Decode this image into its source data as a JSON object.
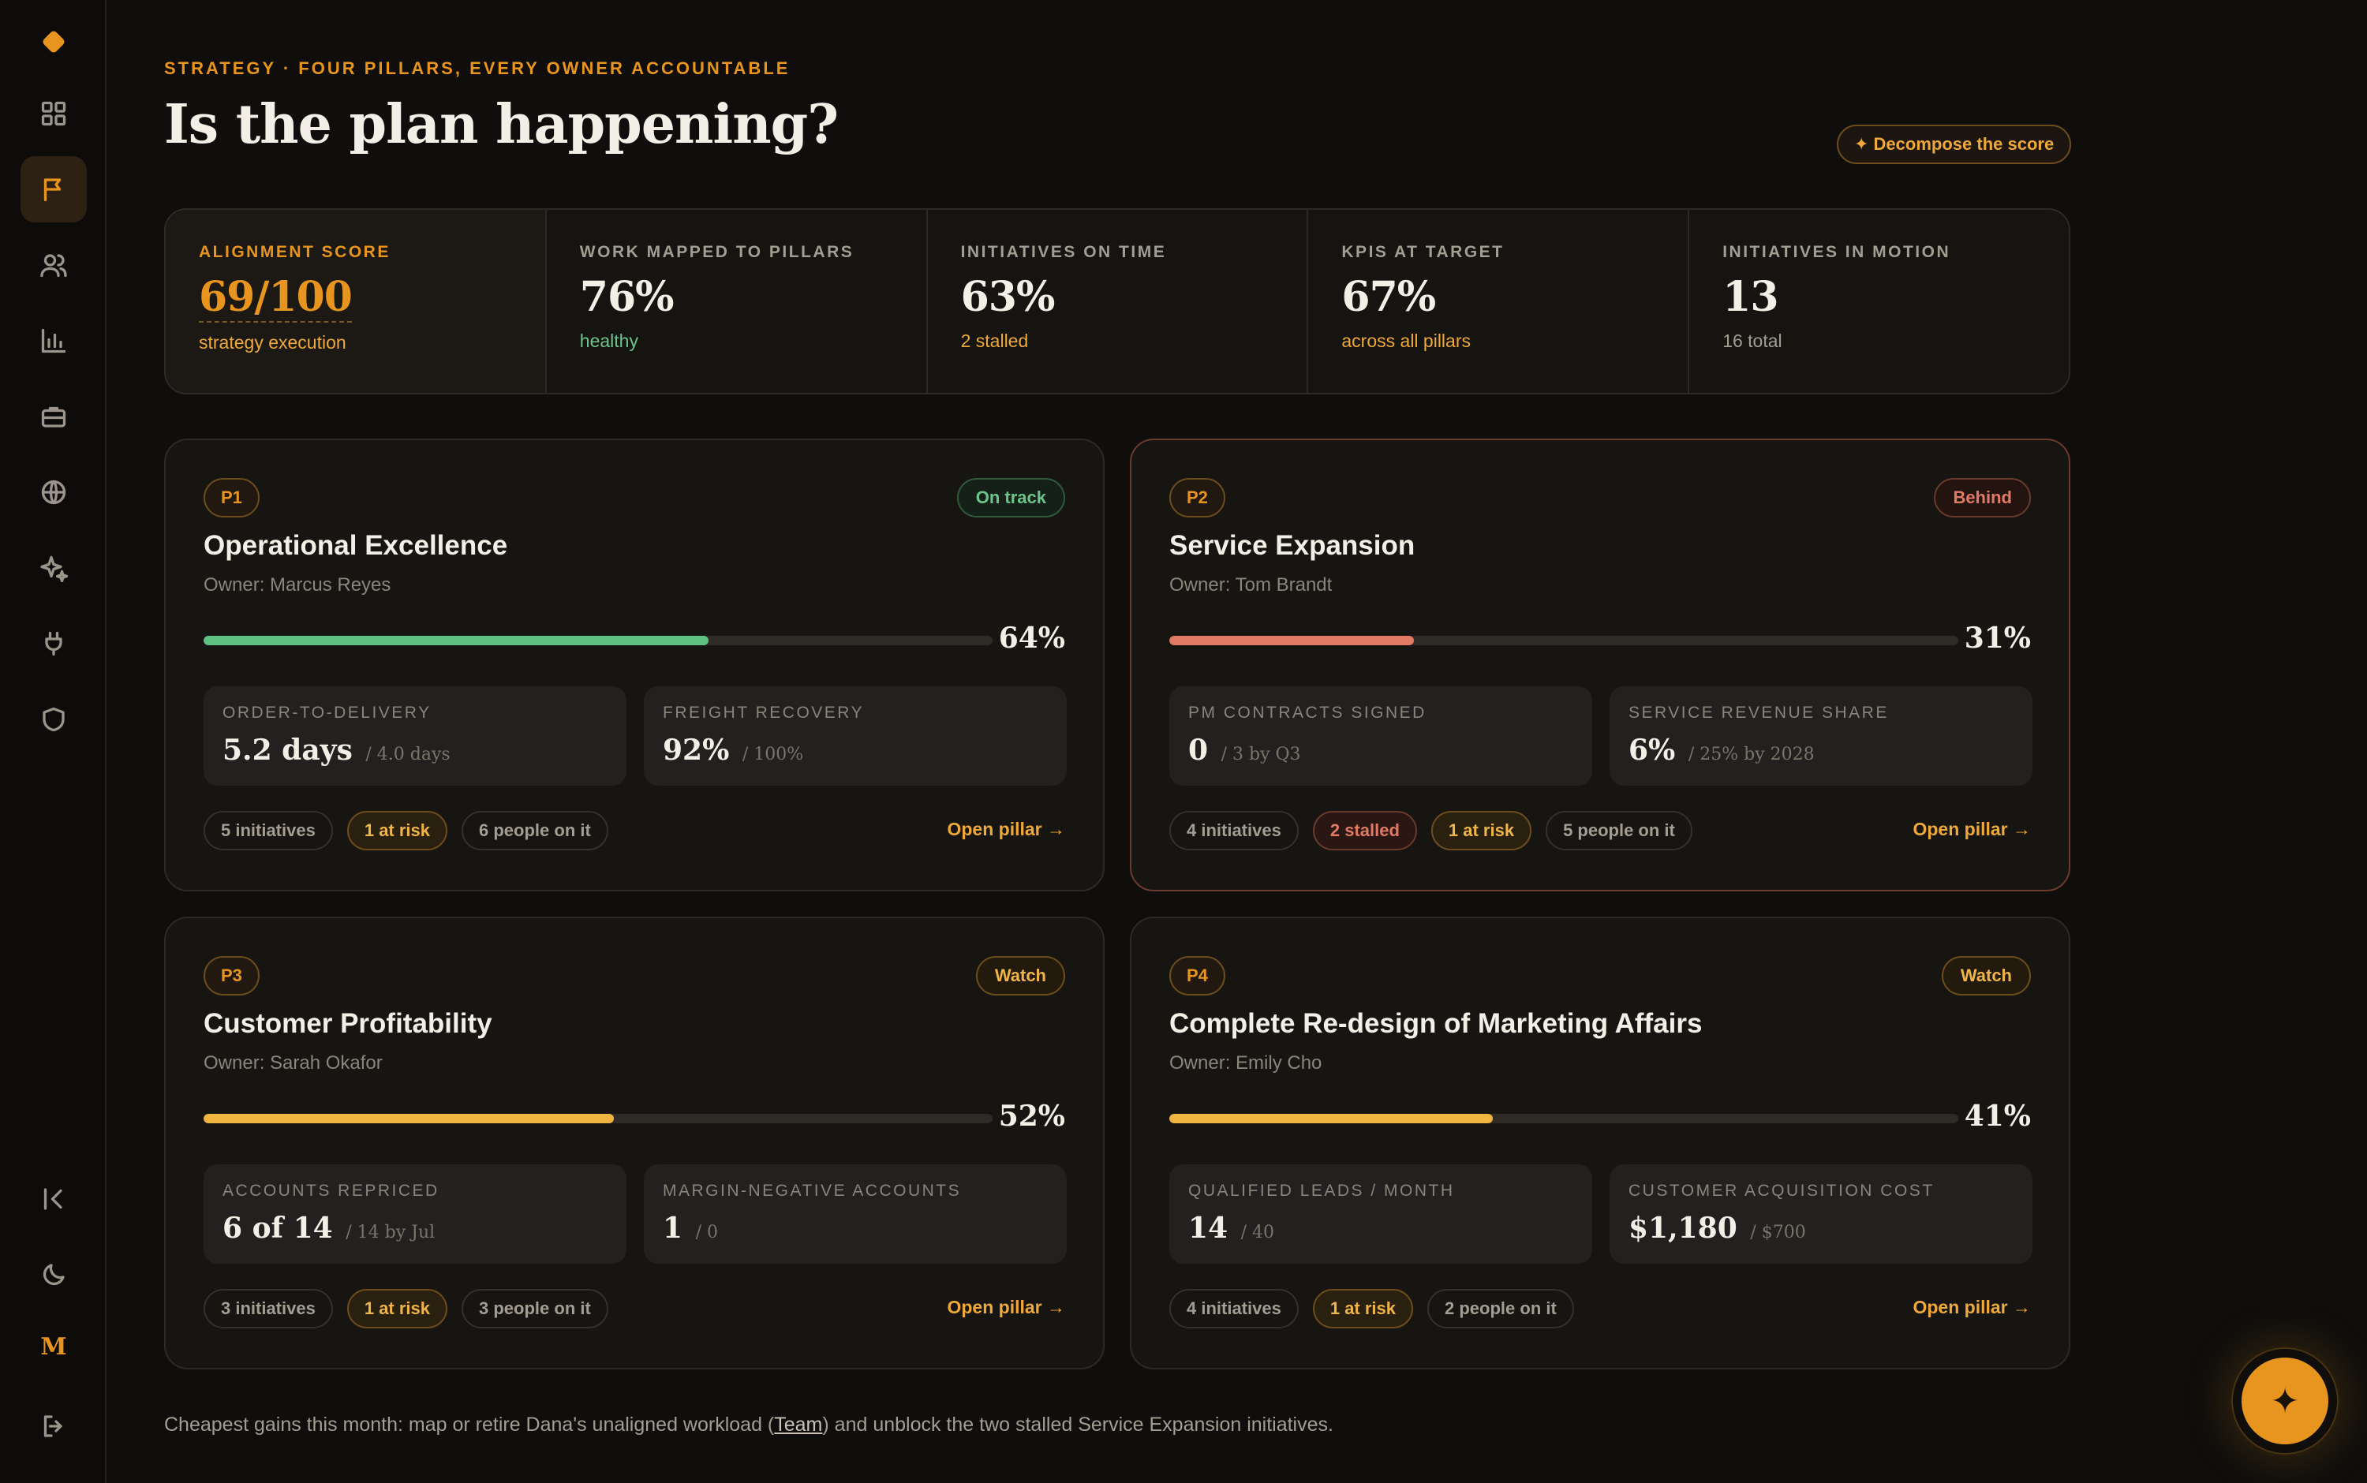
{
  "header": {
    "eyebrow": "STRATEGY · FOUR PILLARS, EVERY OWNER ACCOUNTABLE",
    "title": "Is the plan happening?",
    "decompose_label": "✦ Decompose the score"
  },
  "sidebar": {
    "items": [
      {
        "name": "dashboard",
        "icon": "grid-icon"
      },
      {
        "name": "strategy",
        "icon": "flag-icon",
        "active": true
      },
      {
        "name": "team",
        "icon": "users-icon"
      },
      {
        "name": "analytics",
        "icon": "bar-chart-icon"
      },
      {
        "name": "portfolio",
        "icon": "briefcase-icon"
      },
      {
        "name": "markets",
        "icon": "globe-icon"
      },
      {
        "name": "ai",
        "icon": "sparkles-icon"
      },
      {
        "name": "integrations",
        "icon": "plug-icon"
      },
      {
        "name": "security",
        "icon": "shield-icon"
      }
    ],
    "bottom": [
      {
        "name": "collapse",
        "icon": "collapse-icon"
      },
      {
        "name": "theme",
        "icon": "moon-icon"
      },
      {
        "name": "workspace",
        "label": "M"
      },
      {
        "name": "logout",
        "icon": "logout-icon"
      }
    ]
  },
  "kpis": [
    {
      "label": "ALIGNMENT SCORE",
      "value": "69/100",
      "sub": "strategy execution",
      "tone": "orange"
    },
    {
      "label": "WORK MAPPED TO PILLARS",
      "value": "76%",
      "sub": "healthy",
      "tone": "green"
    },
    {
      "label": "INITIATIVES ON TIME",
      "value": "63%",
      "sub": "2 stalled",
      "tone": "orange"
    },
    {
      "label": "KPIS AT TARGET",
      "value": "67%",
      "sub": "across all pillars",
      "tone": "orange"
    },
    {
      "label": "INITIATIVES IN MOTION",
      "value": "13",
      "sub": "16 total",
      "tone": "gray"
    }
  ],
  "pillars": [
    {
      "id": "P1",
      "status": "On track",
      "name": "Operational Excellence",
      "owner": "Owner: Marcus Reyes",
      "progress": 64,
      "progress_label": "64%",
      "metrics": [
        {
          "label": "ORDER-TO-DELIVERY",
          "value": "5.2 days",
          "target": "/ 4.0 days"
        },
        {
          "label": "FREIGHT RECOVERY",
          "value": "92%",
          "target": "/ 100%"
        }
      ],
      "chips": [
        {
          "text": "5 initiatives",
          "kind": "neutral"
        },
        {
          "text": "1 at risk",
          "kind": "risk"
        },
        {
          "text": "6 people on it",
          "kind": "neutral"
        }
      ],
      "open_label": "Open pillar →"
    },
    {
      "id": "P2",
      "status": "Behind",
      "name": "Service Expansion",
      "owner": "Owner: Tom Brandt",
      "progress": 31,
      "progress_label": "31%",
      "metrics": [
        {
          "label": "PM CONTRACTS SIGNED",
          "value": "0",
          "target": "/ 3 by Q3"
        },
        {
          "label": "SERVICE REVENUE SHARE",
          "value": "6%",
          "target": "/ 25% by 2028"
        }
      ],
      "chips": [
        {
          "text": "4 initiatives",
          "kind": "neutral"
        },
        {
          "text": "2 stalled",
          "kind": "stalled"
        },
        {
          "text": "1 at risk",
          "kind": "risk"
        },
        {
          "text": "5 people on it",
          "kind": "neutral"
        }
      ],
      "open_label": "Open pillar →"
    },
    {
      "id": "P3",
      "status": "Watch",
      "name": "Customer Profitability",
      "owner": "Owner: Sarah Okafor",
      "progress": 52,
      "progress_label": "52%",
      "metrics": [
        {
          "label": "ACCOUNTS REPRICED",
          "value": "6 of 14",
          "target": "/ 14 by Jul"
        },
        {
          "label": "MARGIN-NEGATIVE ACCOUNTS",
          "value": "1",
          "target": "/ 0"
        }
      ],
      "chips": [
        {
          "text": "3 initiatives",
          "kind": "neutral"
        },
        {
          "text": "1 at risk",
          "kind": "risk"
        },
        {
          "text": "3 people on it",
          "kind": "neutral"
        }
      ],
      "open_label": "Open pillar →"
    },
    {
      "id": "P4",
      "status": "Watch",
      "name": "Complete Re-design of Marketing Affairs",
      "owner": "Owner: Emily Cho",
      "progress": 41,
      "progress_label": "41%",
      "metrics": [
        {
          "label": "QUALIFIED LEADS / MONTH",
          "value": "14",
          "target": "/ 40"
        },
        {
          "label": "CUSTOMER ACQUISITION COST",
          "value": "$1,180",
          "target": "/ $700"
        }
      ],
      "chips": [
        {
          "text": "4 initiatives",
          "kind": "neutral"
        },
        {
          "text": "1 at risk",
          "kind": "risk"
        },
        {
          "text": "2 people on it",
          "kind": "neutral"
        }
      ],
      "open_label": "Open pillar →"
    }
  ],
  "footer": {
    "before": "Cheapest gains this month: map or retire Dana's unaligned workload (",
    "link": "Team",
    "after": ") and unblock the two stalled Service Expansion initiatives."
  },
  "fab": {
    "icon": "sparkle-icon",
    "glyph": "✦"
  },
  "colors": {
    "accent": "#e8951f",
    "green": "#6cc48a",
    "red": "#e07a64",
    "yellow": "#f0b440"
  }
}
